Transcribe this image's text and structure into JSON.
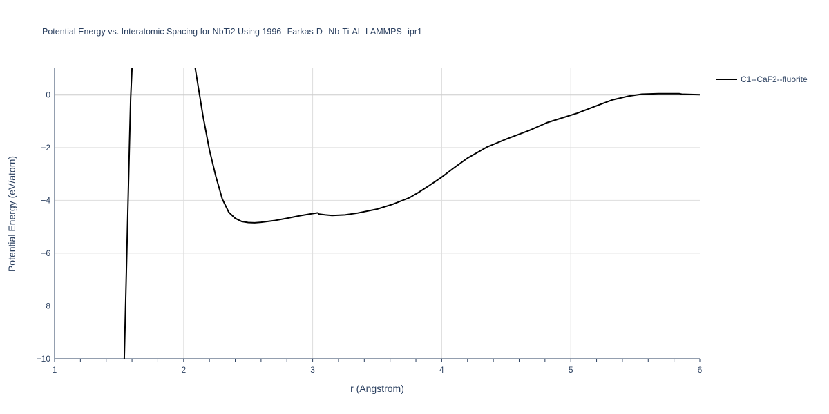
{
  "chart_data": {
    "type": "line",
    "title": "Potential Energy vs. Interatomic Spacing for NbTi2 Using 1996--Farkas-D--Nb-Ti-Al--LAMMPS--ipr1",
    "xlabel": "r (Angstrom)",
    "ylabel": "Potential Energy (eV/atom)",
    "xlim": [
      1,
      6
    ],
    "ylim": [
      -10,
      1
    ],
    "xticks": [
      1,
      2,
      3,
      4,
      5,
      6
    ],
    "yticks": [
      -10,
      -8,
      -6,
      -4,
      -2,
      0
    ],
    "xtick_labels": [
      "1",
      "2",
      "3",
      "4",
      "5",
      "6"
    ],
    "ytick_labels": [
      "−10",
      "−8",
      "−6",
      "−4",
      "−2",
      "0"
    ],
    "grid": true,
    "legend_position": "top-right",
    "series": [
      {
        "name": "C1--CaF2--fluorite",
        "color": "#000000",
        "x": [
          1.54,
          1.56,
          1.58,
          1.59,
          1.6,
          2.09,
          2.1,
          2.15,
          2.2,
          2.25,
          2.3,
          2.35,
          2.4,
          2.45,
          2.5,
          2.55,
          2.6,
          2.7,
          2.8,
          2.9,
          3.0,
          3.04,
          3.05,
          3.1,
          3.15,
          3.25,
          3.35,
          3.5,
          3.62,
          3.75,
          3.82,
          3.9,
          4.0,
          4.1,
          4.2,
          4.35,
          4.5,
          4.68,
          4.82,
          5.05,
          5.2,
          5.32,
          5.45,
          5.55,
          5.68,
          5.84,
          5.86,
          6.0
        ],
        "y": [
          -10.0,
          -6.0,
          -2.0,
          -0.1,
          1.0,
          1.0,
          0.7,
          -0.8,
          -2.1,
          -3.1,
          -3.95,
          -4.45,
          -4.68,
          -4.8,
          -4.84,
          -4.85,
          -4.83,
          -4.77,
          -4.68,
          -4.58,
          -4.5,
          -4.47,
          -4.52,
          -4.55,
          -4.57,
          -4.55,
          -4.48,
          -4.33,
          -4.15,
          -3.9,
          -3.7,
          -3.45,
          -3.12,
          -2.75,
          -2.4,
          -1.98,
          -1.68,
          -1.35,
          -1.05,
          -0.7,
          -0.42,
          -0.2,
          -0.05,
          0.02,
          0.04,
          0.04,
          0.02,
          0.0
        ],
        "breaks": [
          5
        ]
      }
    ]
  }
}
